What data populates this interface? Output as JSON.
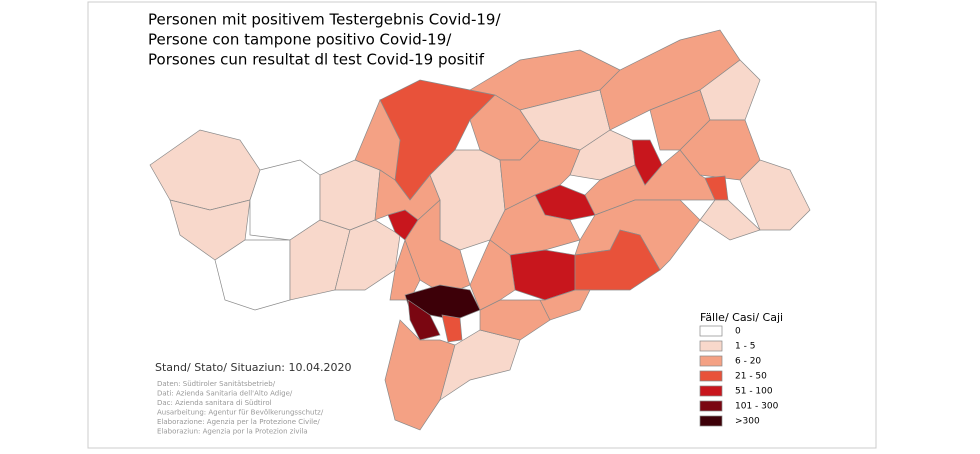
{
  "title": [
    "Personen mit  positivem Testergebnis Covid-19/",
    "Persone con tampone  positivo Covid-19/",
    "Porsones cun resultat dl test Covid-19 positif"
  ],
  "legend": {
    "title": "Fälle/ Casi/ Caji",
    "items": [
      {
        "label": "0",
        "color": "#ffffff"
      },
      {
        "label": "1 - 5",
        "color": "#f8d8cb"
      },
      {
        "label": "6 - 20",
        "color": "#f4a184"
      },
      {
        "label": "21 - 50",
        "color": "#e8523a"
      },
      {
        "label": "51 - 100",
        "color": "#c8161d"
      },
      {
        "label": "101 - 300",
        "color": "#7a0611"
      },
      {
        "label": ">300",
        "color": "#3d0008"
      }
    ]
  },
  "stand": "Stand/ Stato/ Situaziun: 10.04.2020",
  "sources": [
    "Daten: Südtiroler Sanitätsbetrieb/",
    "Dati: Azienda Sanitaria dell'Alto Adige/",
    "Dac: Azienda sanitara di Südtirol",
    "Ausarbeitung: Agentur für Bevölkerungsschutz/",
    "Elaborazione: Agenzia per la Protezione Civile/",
    "Elaboraziun: Agenzia por la Protezion zivila"
  ]
}
